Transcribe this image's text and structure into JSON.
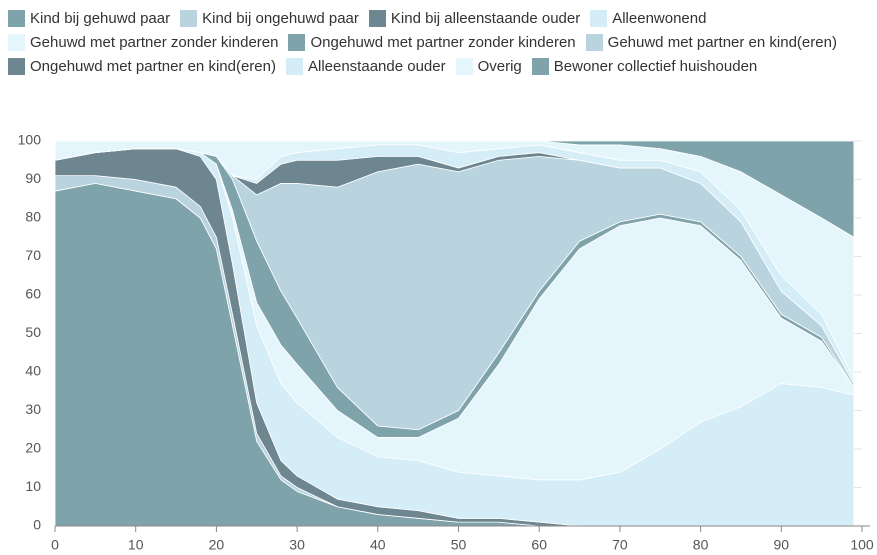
{
  "chart_data": {
    "type": "stacked-area",
    "x": [
      0,
      5,
      10,
      15,
      18,
      20,
      22,
      25,
      28,
      30,
      35,
      40,
      45,
      50,
      55,
      60,
      65,
      70,
      75,
      80,
      85,
      90,
      95,
      99
    ],
    "xlim": [
      0,
      100
    ],
    "xticks": [
      0,
      10,
      20,
      30,
      40,
      50,
      60,
      70,
      80,
      90,
      100
    ],
    "ylim": [
      0,
      100
    ],
    "yticks": [
      0,
      10,
      20,
      30,
      40,
      50,
      60,
      70,
      80,
      90,
      100
    ],
    "grid": true,
    "series": [
      {
        "name": "Kind bij gehuwd paar",
        "color": "#7fa3ab",
        "values": [
          87,
          89,
          87,
          85,
          80,
          72,
          52,
          22,
          12,
          9,
          5,
          3,
          2,
          1,
          1,
          0,
          0,
          0,
          0,
          0,
          0,
          0,
          0,
          0
        ]
      },
      {
        "name": "Kind bij ongehuwd paar",
        "color": "#b9d4de",
        "values": [
          4,
          2,
          3,
          3,
          3,
          3,
          3,
          2,
          1,
          1,
          0,
          0,
          0,
          0,
          0,
          0,
          0,
          0,
          0,
          0,
          0,
          0,
          0,
          0
        ]
      },
      {
        "name": "Kind bij alleenstaande ouder",
        "color": "#6d8690",
        "values": [
          4,
          6,
          8,
          10,
          13,
          15,
          13,
          8,
          4,
          3,
          2,
          2,
          2,
          1,
          1,
          1,
          0,
          0,
          0,
          0,
          0,
          0,
          0,
          0
        ]
      },
      {
        "name": "Alleenwonend",
        "color": "#d4edf7",
        "values": [
          0,
          0,
          0,
          0,
          1,
          4,
          12,
          20,
          20,
          19,
          16,
          13,
          13,
          12,
          11,
          11,
          12,
          14,
          20,
          27,
          31,
          37,
          36,
          34
        ]
      },
      {
        "name": "Gehuwd met partner zonder kinderen",
        "color": "#e4f6fc",
        "values": [
          0,
          0,
          0,
          0,
          0,
          0,
          2,
          6,
          10,
          10,
          7,
          5,
          6,
          14,
          29,
          47,
          60,
          64,
          60,
          51,
          38,
          17,
          12,
          2
        ]
      },
      {
        "name": "Ongehuwd met partner zonder kinderen",
        "color": "#7fa3ab",
        "values": [
          0,
          0,
          0,
          0,
          0,
          2,
          8,
          16,
          14,
          12,
          6,
          3,
          2,
          2,
          3,
          2,
          2,
          1,
          1,
          1,
          1,
          1,
          1,
          0
        ]
      },
      {
        "name": "Gehuwd met partner en kind(eren)",
        "color": "#b9d4de",
        "values": [
          0,
          0,
          0,
          0,
          0,
          0,
          1,
          12,
          28,
          35,
          52,
          66,
          69,
          62,
          50,
          35,
          21,
          14,
          12,
          10,
          9,
          6,
          3,
          1
        ]
      },
      {
        "name": "Ongehuwd met partner en kind(eren)",
        "color": "#6d8690",
        "values": [
          0,
          0,
          0,
          0,
          0,
          0,
          0,
          3,
          5,
          6,
          7,
          4,
          2,
          1,
          1,
          1,
          0,
          0,
          0,
          0,
          0,
          0,
          0,
          0
        ]
      },
      {
        "name": "Alleenstaande ouder",
        "color": "#d4edf7",
        "values": [
          0,
          0,
          0,
          0,
          0,
          0,
          0,
          1,
          2,
          2,
          3,
          3,
          3,
          4,
          2,
          2,
          2,
          2,
          2,
          3,
          3,
          4,
          3,
          1
        ]
      },
      {
        "name": "Overig",
        "color": "#e4f6fc",
        "values": [
          5,
          3,
          2,
          2,
          3,
          4,
          9,
          10,
          4,
          3,
          2,
          1,
          1,
          3,
          2,
          1,
          2,
          4,
          3,
          4,
          10,
          21,
          25,
          37
        ]
      },
      {
        "name": "Bewoner collectief huishouden",
        "color": "#7fa3ab",
        "values": [
          0,
          0,
          0,
          0,
          0,
          0,
          0,
          0,
          0,
          0,
          0,
          0,
          0,
          0,
          0,
          0,
          1,
          1,
          2,
          4,
          8,
          14,
          20,
          25
        ]
      }
    ]
  }
}
